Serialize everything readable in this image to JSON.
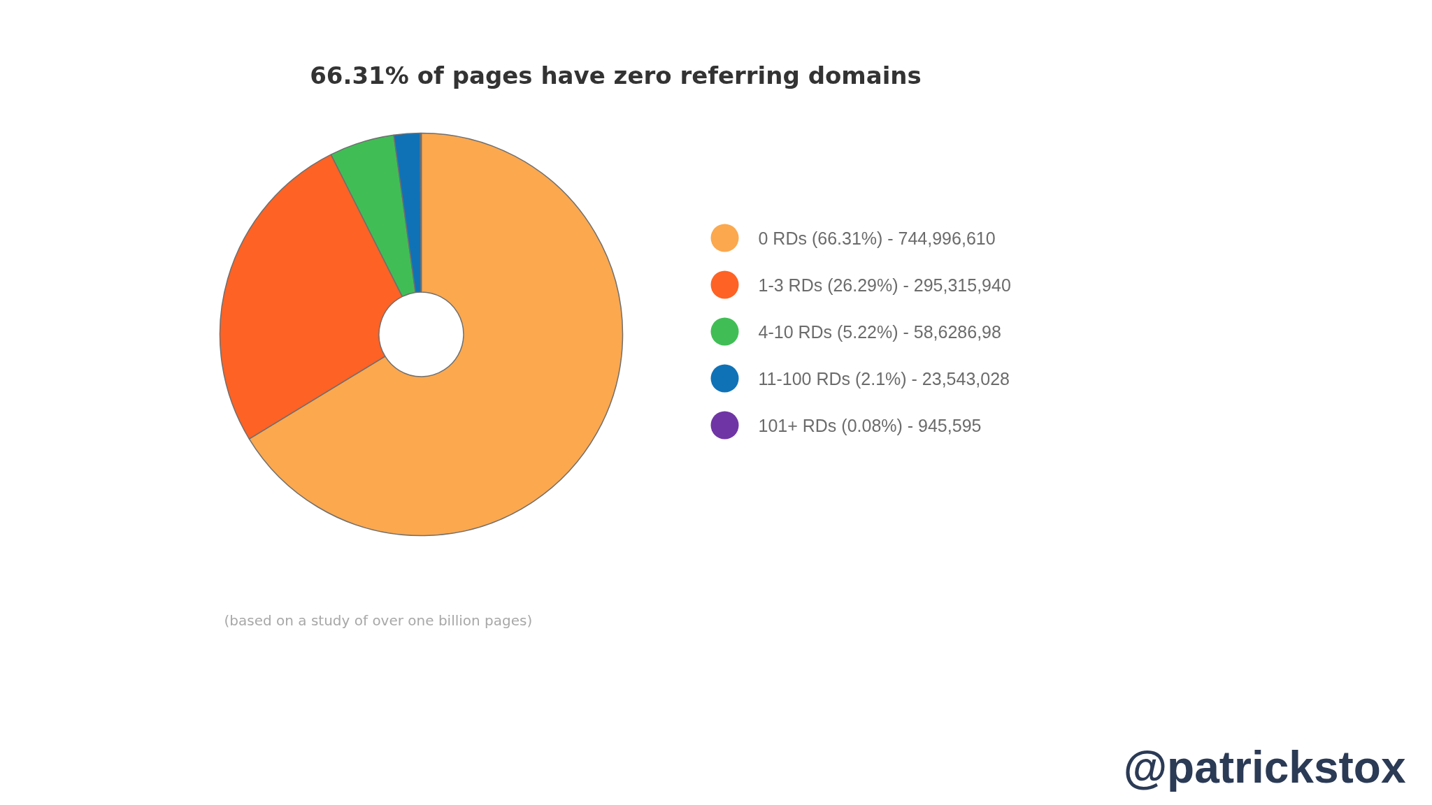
{
  "chart_data": {
    "type": "donut",
    "title": "66.31% of pages have zero referring domains",
    "categories": [
      "0 RDs (66.31%) - 744,996,610",
      "1-3 RDs (26.29%) - 295,315,940",
      "4-10 RDs (5.22%) - 58,6286,98",
      "11-100 RDs (2.1%) - 23,543,028",
      "101+ RDs (0.08%) - 945,595"
    ],
    "values": [
      66.31,
      26.29,
      5.22,
      2.1,
      0.08
    ],
    "colors": [
      "#fba84f",
      "#fe6224",
      "#40be55",
      "#0f72b7",
      "#6f35a5"
    ],
    "legend": "right",
    "annotations": [
      "(based on a study of over one billion pages)",
      "@patrickstox"
    ]
  }
}
